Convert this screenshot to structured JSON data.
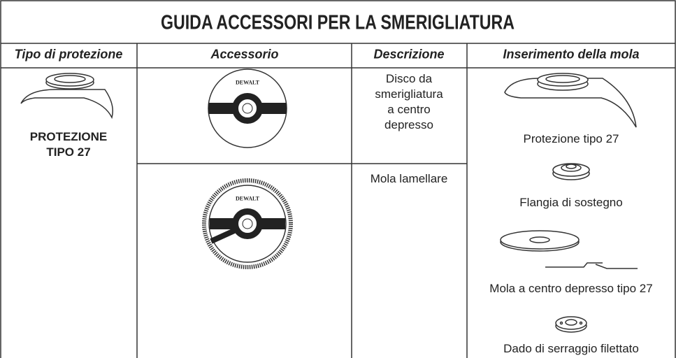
{
  "title": "GUIDA ACCESSORI PER LA SMERIGLIATURA",
  "headers": [
    "Tipo di protezione",
    "Accessorio",
    "Descrizione",
    "Inserimento della mola"
  ],
  "guard": {
    "lines": [
      "PROTEZIONE",
      "TIPO 27"
    ]
  },
  "accessories": [
    {
      "brand": "DEWALT",
      "description": [
        "Disco da",
        "smerigliatura",
        "a centro",
        "depresso"
      ]
    },
    {
      "brand": "DEWALT",
      "description": [
        "Mola lamellare"
      ]
    }
  ],
  "assembly": [
    "Protezione tipo 27",
    "Flangia di sostegno",
    "Mola a centro depresso tipo 27",
    "Dado di serraggio filettato"
  ]
}
